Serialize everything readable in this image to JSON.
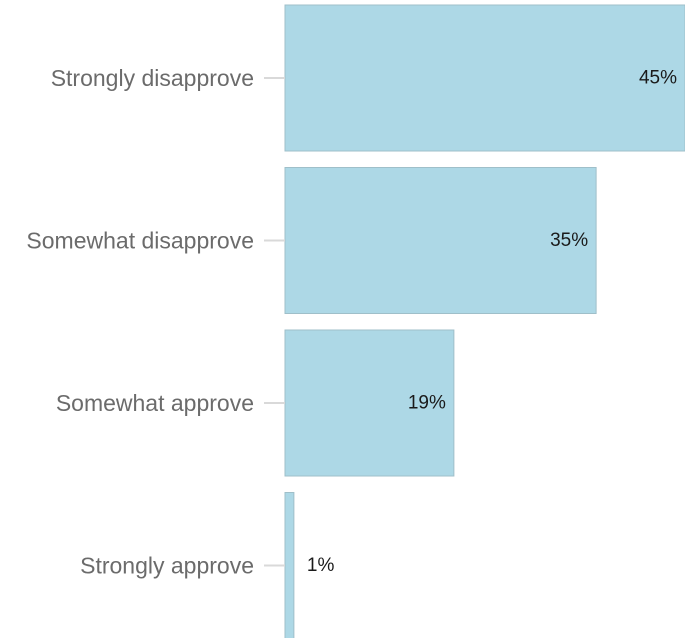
{
  "chart_data": {
    "type": "bar",
    "orientation": "horizontal",
    "categories": [
      "Strongly disapprove",
      "Somewhat disapprove",
      "Somewhat approve",
      "Strongly approve"
    ],
    "values": [
      45,
      35,
      19,
      1
    ],
    "value_labels": [
      "45%",
      "35%",
      "19%",
      "1%"
    ],
    "unit": "%",
    "xlim": [
      0,
      45
    ],
    "grid": false,
    "legend": "none",
    "bar_color": "#add8e6"
  }
}
